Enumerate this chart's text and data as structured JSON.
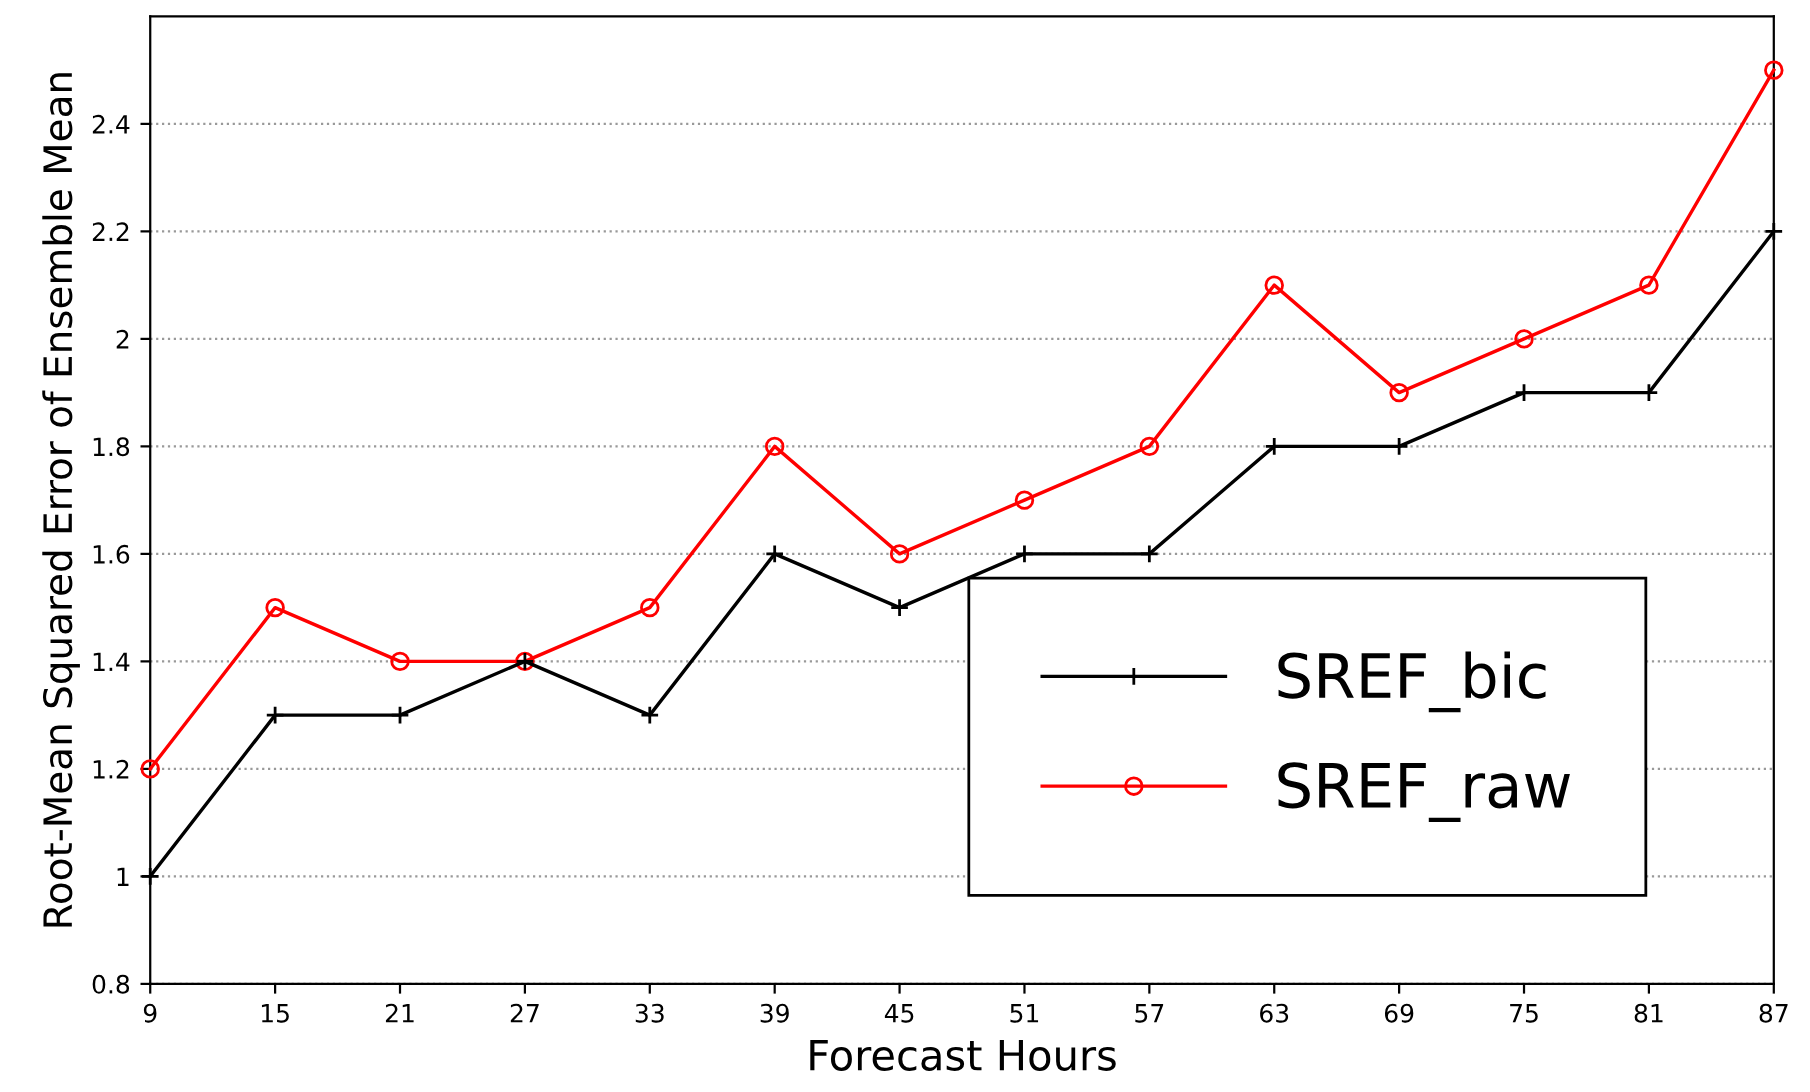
{
  "chart_data": {
    "type": "line",
    "xlabel": "Forecast Hours",
    "ylabel": "Root-Mean Squared Error of Ensemble Mean",
    "x": [
      9,
      15,
      21,
      27,
      33,
      39,
      45,
      51,
      57,
      63,
      69,
      75,
      81,
      87
    ],
    "series": [
      {
        "name": "SREF_bic",
        "color": "#000000",
        "marker": "cross",
        "values": [
          1.0,
          1.3,
          1.3,
          1.4,
          1.3,
          1.6,
          1.5,
          1.6,
          1.6,
          1.8,
          1.8,
          1.9,
          1.9,
          2.2
        ]
      },
      {
        "name": "SREF_raw",
        "color": "#ff0000",
        "marker": "circle",
        "values": [
          1.2,
          1.5,
          1.4,
          1.4,
          1.5,
          1.8,
          1.6,
          1.7,
          1.8,
          2.1,
          1.9,
          2.0,
          2.1,
          2.5
        ]
      }
    ],
    "xlim": [
      9,
      87
    ],
    "xticks": [
      9,
      15,
      21,
      27,
      33,
      39,
      45,
      51,
      57,
      63,
      69,
      75,
      81,
      87
    ],
    "ylim": [
      0.8,
      2.6
    ],
    "yticks": [
      0.8,
      1,
      1.2,
      1.4,
      1.6,
      1.8,
      2,
      2.2,
      2.4
    ],
    "grid": "y",
    "legend": "bottom right",
    "line_style": "solid"
  }
}
